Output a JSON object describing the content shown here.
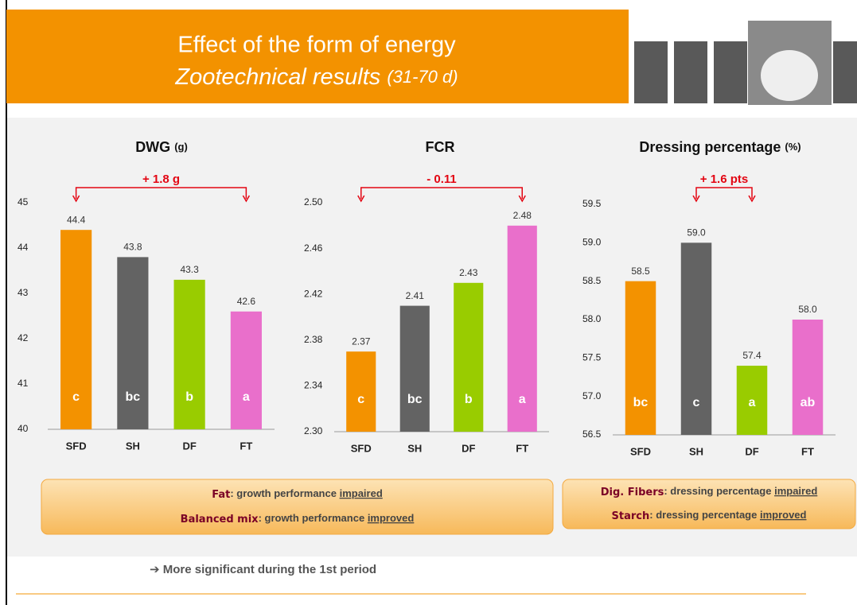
{
  "header": {
    "title": "Effect of the form of energy",
    "subtitle": "Zootechnical results",
    "period": "(31-70 d)"
  },
  "chart_data": [
    {
      "type": "bar",
      "title": "DWG",
      "unit": "(g)",
      "annotation": "+ 1.8 g",
      "categories": [
        "SFD",
        "SH",
        "DF",
        "FT"
      ],
      "values": [
        44.4,
        43.8,
        43.3,
        42.6
      ],
      "letters": [
        "c",
        "bc",
        "b",
        "a"
      ],
      "colors": [
        "#f39200",
        "#636363",
        "#99cc00",
        "#e96fcb"
      ],
      "ylim": [
        40,
        45
      ],
      "yticks": [
        40,
        41,
        42,
        43,
        44,
        45
      ]
    },
    {
      "type": "bar",
      "title": "FCR",
      "annotation": "- 0.11",
      "categories": [
        "SFD",
        "SH",
        "DF",
        "FT"
      ],
      "values": [
        2.37,
        2.41,
        2.43,
        2.48
      ],
      "letters": [
        "c",
        "bc",
        "b",
        "a"
      ],
      "colors": [
        "#f39200",
        "#636363",
        "#99cc00",
        "#e96fcb"
      ],
      "ylim": [
        2.3,
        2.5
      ],
      "yticks": [
        {
          "value": 2.3,
          "label": "2.30"
        },
        2.34,
        2.38,
        2.42,
        2.46,
        {
          "value": 2.5,
          "label": "2.50"
        }
      ]
    },
    {
      "type": "bar",
      "title": "Dressing percentage",
      "unit": "(%)",
      "annotation": "+ 1.6 pts",
      "categories": [
        "SFD",
        "SH",
        "DF",
        "FT"
      ],
      "values": [
        58.5,
        59.0,
        57.4,
        58.0
      ],
      "value_labels": [
        "58.5",
        "59.0",
        "57.4",
        "58.0"
      ],
      "letters": [
        "bc",
        "c",
        "a",
        "ab"
      ],
      "colors": [
        "#f39200",
        "#636363",
        "#99cc00",
        "#e96fcb"
      ],
      "ylim": [
        56.5,
        59.5
      ],
      "yticks": [
        56.5,
        {
          "value": 57,
          "label": "57.0"
        },
        57.5,
        {
          "value": 58,
          "label": "58.0"
        },
        58.5,
        {
          "value": 59,
          "label": "59.0"
        },
        59.5
      ]
    }
  ],
  "boxes": [
    {
      "lines": [
        {
          "lead": "Fat",
          "text": ": growth performance ",
          "keyword": "impaired"
        },
        {
          "lead": "Balanced mix",
          "text": ": growth performance ",
          "keyword": "improved"
        }
      ]
    },
    {
      "lines": [
        {
          "lead": "Dig. Fibers",
          "text": ": dressing percentage ",
          "keyword": "impaired"
        },
        {
          "lead": "Starch",
          "text": ": dressing percentage ",
          "keyword": "improved"
        }
      ]
    }
  ],
  "conclusion": "➔ More significant during the 1st period"
}
